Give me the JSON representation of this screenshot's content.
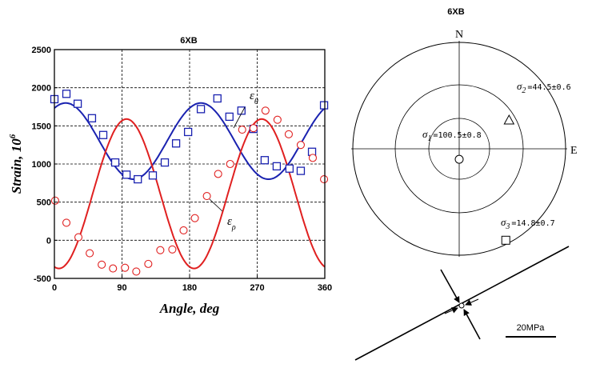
{
  "chart_data": [
    {
      "type": "scatter",
      "title": "6XB",
      "xlabel": "Angle, deg",
      "ylabel": "Strain, 10^6",
      "ylabel_main": "Strain, 10",
      "ylabel_exp": "6",
      "xlim": [
        0,
        360
      ],
      "ylim": [
        -500,
        2500
      ],
      "xticks": [
        0,
        90,
        180,
        270,
        360
      ],
      "yticks": [
        -500,
        0,
        500,
        1000,
        1500,
        2000,
        2500
      ],
      "grid": true,
      "series": [
        {
          "name": "εθ",
          "label_main": "ε",
          "label_sub": "θ",
          "marker": "square",
          "color": "#1a22b0",
          "x": [
            0,
            16,
            31,
            50,
            65,
            81,
            96,
            111,
            131,
            147,
            162,
            178,
            195,
            217,
            233,
            249,
            265,
            280,
            296,
            313,
            328,
            343,
            359
          ],
          "y": [
            1850,
            1920,
            1790,
            1600,
            1380,
            1020,
            860,
            800,
            850,
            1020,
            1270,
            1420,
            1720,
            1860,
            1620,
            1700,
            1460,
            1050,
            970,
            940,
            910,
            1160,
            1770
          ],
          "fit_mean": 1300,
          "fit_amp": 500,
          "fit_phase_deg": 15
        },
        {
          "name": "ερ",
          "label_main": "ε",
          "label_sub": "ρ",
          "marker": "circle",
          "color": "#e02020",
          "x": [
            1,
            16,
            32,
            47,
            63,
            78,
            94,
            109,
            125,
            141,
            157,
            172,
            187,
            203,
            218,
            234,
            250,
            265,
            281,
            297,
            312,
            328,
            344,
            359
          ],
          "y": [
            520,
            230,
            40,
            -170,
            -320,
            -370,
            -360,
            -410,
            -310,
            -130,
            -120,
            130,
            290,
            580,
            870,
            1000,
            1450,
            1470,
            1700,
            1580,
            1390,
            1250,
            1080,
            800
          ],
          "fit_mean": 610,
          "fit_amp": 980,
          "fit_phase_deg": 96
        }
      ]
    },
    {
      "type": "scatter",
      "title": "6XB",
      "directions": {
        "n": "N",
        "e": "E"
      },
      "stresses": [
        {
          "name": "σ1",
          "symbol": "σ",
          "sub": "1",
          "value_text": "=100.5±0.8",
          "marker": "circle",
          "trend_deg": 180,
          "plunge_deg": 82
        },
        {
          "name": "σ2",
          "symbol": "σ",
          "sub": "2",
          "value_text": "=44.5±0.6",
          "marker": "triangle",
          "trend_deg": 60,
          "plunge_deg": 45
        },
        {
          "name": "σ3",
          "symbol": "σ",
          "sub": "3",
          "value_text": "=14.8±0.7",
          "marker": "square",
          "trend_deg": 153,
          "plunge_deg": 4
        }
      ],
      "stress_arrows": {
        "strike_deg": 60,
        "compression_deg": 150
      },
      "scale_label": "20MPa"
    }
  ]
}
